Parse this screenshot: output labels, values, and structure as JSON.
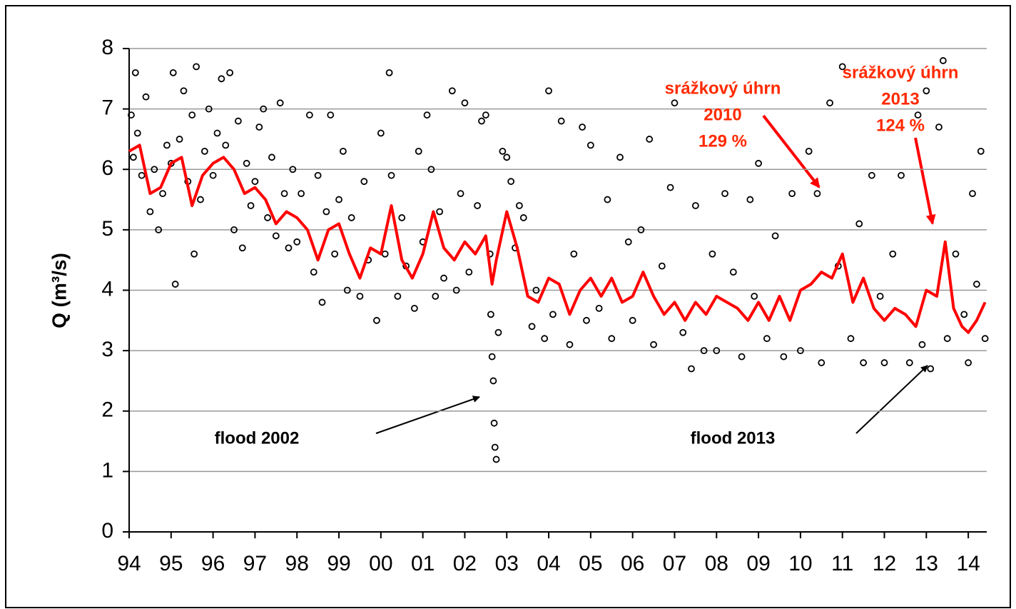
{
  "chart_data": {
    "type": "scatter",
    "ylabel": "Q (m³/s)",
    "xlim": [
      1994,
      2014.44
    ],
    "ylim": [
      0,
      8
    ],
    "yticks": [
      0,
      1,
      2,
      3,
      4,
      5,
      6,
      7,
      8
    ],
    "xticks": [
      {
        "value": 1994,
        "label": "94"
      },
      {
        "value": 1995,
        "label": "95"
      },
      {
        "value": 1996,
        "label": "96"
      },
      {
        "value": 1997,
        "label": "97"
      },
      {
        "value": 1998,
        "label": "98"
      },
      {
        "value": 1999,
        "label": "99"
      },
      {
        "value": 2000,
        "label": "00"
      },
      {
        "value": 2001,
        "label": "01"
      },
      {
        "value": 2002,
        "label": "02"
      },
      {
        "value": 2003,
        "label": "03"
      },
      {
        "value": 2004,
        "label": "04"
      },
      {
        "value": 2005,
        "label": "05"
      },
      {
        "value": 2006,
        "label": "06"
      },
      {
        "value": 2007,
        "label": "07"
      },
      {
        "value": 2008,
        "label": "08"
      },
      {
        "value": 2009,
        "label": "09"
      },
      {
        "value": 2010,
        "label": "10"
      },
      {
        "value": 2011,
        "label": "11"
      },
      {
        "value": 2012,
        "label": "12"
      },
      {
        "value": 2013,
        "label": "13"
      },
      {
        "value": 2014,
        "label": "14"
      }
    ],
    "grid": true,
    "series": [
      {
        "type": "scatter",
        "color": "#000000",
        "x": [
          1994.05,
          1994.1,
          1994.15,
          1994.2,
          1994.3,
          1994.4,
          1994.5,
          1994.6,
          1994.7,
          1994.8,
          1994.9,
          1995.0,
          1995.05,
          1995.1,
          1995.2,
          1995.3,
          1995.4,
          1995.5,
          1995.55,
          1995.6,
          1995.7,
          1995.8,
          1995.9,
          1996.0,
          1996.1,
          1996.2,
          1996.3,
          1996.4,
          1996.5,
          1996.6,
          1996.7,
          1996.8,
          1996.9,
          1997.0,
          1997.1,
          1997.2,
          1997.3,
          1997.4,
          1997.5,
          1997.6,
          1997.7,
          1997.8,
          1997.9,
          1998.0,
          1998.1,
          1998.3,
          1998.4,
          1998.5,
          1998.6,
          1998.7,
          1998.8,
          1998.9,
          1999.0,
          1999.1,
          1999.2,
          1999.3,
          1999.5,
          1999.6,
          1999.7,
          1999.9,
          2000.0,
          2000.1,
          2000.2,
          2000.25,
          2000.4,
          2000.5,
          2000.6,
          2000.8,
          2000.9,
          2001.0,
          2001.1,
          2001.2,
          2001.3,
          2001.4,
          2001.5,
          2001.7,
          2001.8,
          2001.9,
          2002.0,
          2002.1,
          2002.3,
          2002.4,
          2002.5,
          2002.6,
          2002.62,
          2002.65,
          2002.68,
          2002.7,
          2002.72,
          2002.75,
          2002.8,
          2002.9,
          2003.0,
          2003.1,
          2003.2,
          2003.3,
          2003.4,
          2003.6,
          2003.7,
          2003.9,
          2004.0,
          2004.1,
          2004.3,
          2004.5,
          2004.6,
          2004.8,
          2004.9,
          2005.0,
          2005.2,
          2005.4,
          2005.5,
          2005.7,
          2005.9,
          2006.0,
          2006.2,
          2006.4,
          2006.5,
          2006.7,
          2006.9,
          2007.0,
          2007.2,
          2007.4,
          2007.5,
          2007.7,
          2007.9,
          2008.0,
          2008.2,
          2008.4,
          2008.6,
          2008.8,
          2008.9,
          2009.0,
          2009.2,
          2009.4,
          2009.6,
          2009.8,
          2010.0,
          2010.2,
          2010.4,
          2010.5,
          2010.7,
          2010.9,
          2011.0,
          2011.2,
          2011.4,
          2011.5,
          2011.7,
          2011.9,
          2012.0,
          2012.2,
          2012.4,
          2012.6,
          2012.8,
          2012.9,
          2013.0,
          2013.1,
          2013.3,
          2013.4,
          2013.5,
          2013.7,
          2013.9,
          2014.0,
          2014.1,
          2014.2,
          2014.3,
          2014.4
        ],
        "values": [
          6.9,
          6.2,
          7.6,
          6.6,
          5.9,
          7.2,
          5.3,
          6.0,
          5.0,
          5.6,
          6.4,
          6.1,
          7.6,
          4.1,
          6.5,
          7.3,
          5.8,
          6.9,
          4.6,
          7.7,
          5.5,
          6.3,
          7.0,
          5.9,
          6.6,
          7.5,
          6.4,
          7.6,
          5.0,
          6.8,
          4.7,
          6.1,
          5.4,
          5.8,
          6.7,
          7.0,
          5.2,
          6.2,
          4.9,
          7.1,
          5.6,
          4.7,
          6.0,
          4.8,
          5.6,
          6.9,
          4.3,
          5.9,
          3.8,
          5.3,
          6.9,
          4.6,
          5.5,
          6.3,
          4.0,
          5.2,
          3.9,
          5.8,
          4.5,
          3.5,
          6.6,
          4.6,
          7.6,
          5.9,
          3.9,
          5.2,
          4.4,
          3.7,
          6.3,
          4.8,
          6.9,
          6.0,
          3.9,
          5.3,
          4.2,
          7.3,
          4.0,
          5.6,
          7.1,
          4.3,
          5.4,
          6.8,
          6.9,
          4.6,
          3.6,
          2.9,
          2.5,
          1.8,
          1.4,
          1.2,
          3.3,
          6.3,
          6.2,
          5.8,
          4.7,
          5.4,
          5.2,
          3.4,
          4.0,
          3.2,
          7.3,
          3.6,
          6.8,
          3.1,
          4.6,
          6.7,
          3.5,
          6.4,
          3.7,
          5.5,
          3.2,
          6.2,
          4.8,
          3.5,
          5.0,
          6.5,
          3.1,
          4.4,
          5.7,
          7.1,
          3.3,
          2.7,
          5.4,
          3.0,
          4.6,
          3.0,
          5.6,
          4.3,
          2.9,
          5.5,
          3.9,
          6.1,
          3.2,
          4.9,
          2.9,
          5.6,
          3.0,
          6.3,
          5.6,
          2.8,
          7.1,
          4.4,
          7.7,
          3.2,
          5.1,
          2.8,
          5.9,
          3.9,
          2.8,
          4.6,
          5.9,
          2.8,
          6.9,
          3.1,
          7.3,
          2.7,
          6.7,
          7.8,
          3.2,
          4.6,
          3.6,
          2.8,
          5.6,
          4.1,
          6.3,
          3.2
        ]
      },
      {
        "type": "line",
        "color": "#ff0000",
        "x": [
          1994.0,
          1994.25,
          1994.5,
          1994.75,
          1995.0,
          1995.25,
          1995.5,
          1995.75,
          1996.0,
          1996.25,
          1996.5,
          1996.75,
          1997.0,
          1997.25,
          1997.5,
          1997.75,
          1998.0,
          1998.25,
          1998.5,
          1998.75,
          1999.0,
          1999.25,
          1999.5,
          1999.75,
          2000.0,
          2000.25,
          2000.5,
          2000.75,
          2001.0,
          2001.25,
          2001.5,
          2001.75,
          2002.0,
          2002.25,
          2002.5,
          2002.65,
          2002.75,
          2003.0,
          2003.25,
          2003.5,
          2003.75,
          2004.0,
          2004.25,
          2004.5,
          2004.75,
          2005.0,
          2005.25,
          2005.5,
          2005.75,
          2006.0,
          2006.25,
          2006.5,
          2006.75,
          2007.0,
          2007.25,
          2007.5,
          2007.75,
          2008.0,
          2008.25,
          2008.5,
          2008.75,
          2009.0,
          2009.25,
          2009.5,
          2009.75,
          2010.0,
          2010.25,
          2010.5,
          2010.75,
          2011.0,
          2011.25,
          2011.5,
          2011.75,
          2012.0,
          2012.25,
          2012.5,
          2012.75,
          2013.0,
          2013.25,
          2013.45,
          2013.65,
          2013.85,
          2014.0,
          2014.2,
          2014.4
        ],
        "values": [
          6.3,
          6.4,
          5.6,
          5.7,
          6.1,
          6.2,
          5.4,
          5.9,
          6.1,
          6.2,
          6.0,
          5.6,
          5.7,
          5.5,
          5.1,
          5.3,
          5.2,
          5.0,
          4.5,
          5.0,
          5.1,
          4.6,
          4.2,
          4.7,
          4.6,
          5.4,
          4.5,
          4.2,
          4.6,
          5.3,
          4.7,
          4.5,
          4.8,
          4.6,
          4.9,
          4.1,
          4.5,
          5.3,
          4.7,
          3.9,
          3.8,
          4.2,
          4.1,
          3.6,
          4.0,
          4.2,
          3.9,
          4.2,
          3.8,
          3.9,
          4.3,
          3.9,
          3.6,
          3.8,
          3.5,
          3.8,
          3.6,
          3.9,
          3.8,
          3.7,
          3.5,
          3.8,
          3.5,
          3.9,
          3.5,
          4.0,
          4.1,
          4.3,
          4.2,
          4.6,
          3.8,
          4.2,
          3.7,
          3.5,
          3.7,
          3.6,
          3.4,
          4.0,
          3.9,
          4.8,
          3.7,
          3.4,
          3.3,
          3.5,
          3.8
        ]
      }
    ],
    "annotations": [
      [
        "flood 2002"
      ],
      [
        "flood 2013"
      ],
      [
        "srážkový úhrn",
        "2010",
        "129 %"
      ],
      [
        "srážkový úhrn",
        "2013",
        "124 %"
      ]
    ]
  }
}
